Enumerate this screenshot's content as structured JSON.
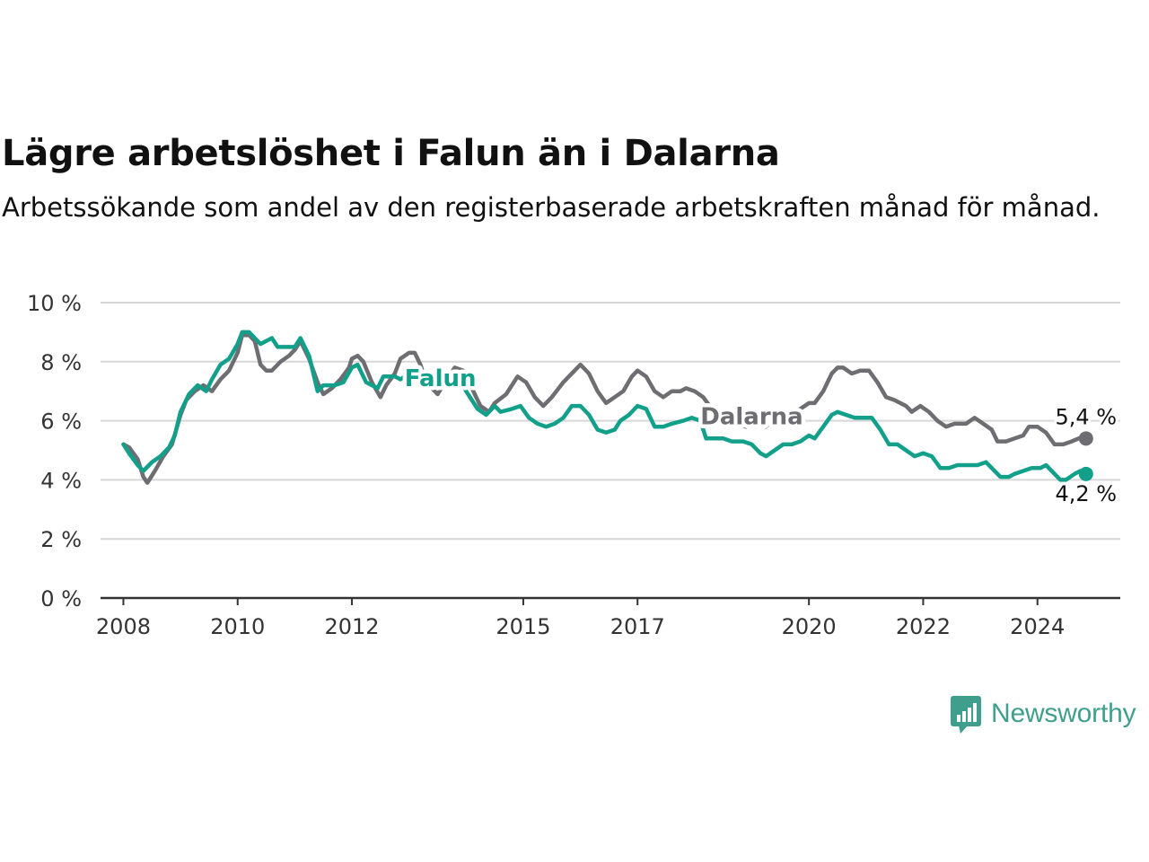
{
  "title": "Lägre arbetslöshet i Falun än i Dalarna",
  "subtitle": "Arbetssökande som andel av den registerbaserade arbetskraften månad för månad.",
  "brand": "Newsworthy",
  "colors": {
    "falun": "#13a08b",
    "dalarna": "#6e6e72",
    "brand": "#3f9f8c"
  },
  "chart_data": {
    "type": "line",
    "ylim": [
      0,
      10
    ],
    "xlim": [
      2007.6,
      2025.45
    ],
    "y_ticks": [
      0,
      2,
      4,
      6,
      8,
      10
    ],
    "y_tick_labels": [
      "0 %",
      "2 %",
      "4 %",
      "6 %",
      "8 %",
      "10 %"
    ],
    "x_ticks": [
      2008,
      2010,
      2012,
      2015,
      2017,
      2020,
      2022,
      2024
    ],
    "x_tick_labels": [
      "2008",
      "2010",
      "2012",
      "2015",
      "2017",
      "2020",
      "2022",
      "2024"
    ],
    "grid": true,
    "series": [
      {
        "name": "Dalarna",
        "end_label": "5,4 %",
        "points": [
          [
            2008.0,
            5.2
          ],
          [
            2008.1,
            5.1
          ],
          [
            2008.25,
            4.7
          ],
          [
            2008.35,
            4.1
          ],
          [
            2008.42,
            3.9
          ],
          [
            2008.55,
            4.3
          ],
          [
            2008.7,
            4.8
          ],
          [
            2008.85,
            5.2
          ],
          [
            2009.0,
            6.2
          ],
          [
            2009.1,
            6.7
          ],
          [
            2009.25,
            7.0
          ],
          [
            2009.4,
            7.2
          ],
          [
            2009.55,
            7.0
          ],
          [
            2009.7,
            7.4
          ],
          [
            2009.85,
            7.7
          ],
          [
            2010.0,
            8.3
          ],
          [
            2010.08,
            8.9
          ],
          [
            2010.2,
            8.9
          ],
          [
            2010.3,
            8.7
          ],
          [
            2010.4,
            7.9
          ],
          [
            2010.5,
            7.7
          ],
          [
            2010.6,
            7.7
          ],
          [
            2010.75,
            8.0
          ],
          [
            2010.9,
            8.2
          ],
          [
            2011.0,
            8.4
          ],
          [
            2011.1,
            8.7
          ],
          [
            2011.25,
            8.1
          ],
          [
            2011.4,
            7.3
          ],
          [
            2011.5,
            6.9
          ],
          [
            2011.65,
            7.1
          ],
          [
            2011.8,
            7.4
          ],
          [
            2011.95,
            7.8
          ],
          [
            2012.0,
            8.1
          ],
          [
            2012.1,
            8.2
          ],
          [
            2012.2,
            8.0
          ],
          [
            2012.35,
            7.3
          ],
          [
            2012.5,
            6.8
          ],
          [
            2012.6,
            7.2
          ],
          [
            2012.75,
            7.6
          ],
          [
            2012.85,
            8.1
          ],
          [
            2013.0,
            8.3
          ],
          [
            2013.1,
            8.3
          ],
          [
            2013.2,
            7.9
          ],
          [
            2013.3,
            7.3
          ],
          [
            2013.5,
            6.9
          ],
          [
            2013.6,
            7.2
          ],
          [
            2013.8,
            7.8
          ],
          [
            2013.95,
            7.7
          ],
          [
            2014.1,
            7.1
          ],
          [
            2014.25,
            6.5
          ],
          [
            2014.4,
            6.3
          ],
          [
            2014.5,
            6.6
          ],
          [
            2014.7,
            6.9
          ],
          [
            2014.9,
            7.5
          ],
          [
            2015.05,
            7.3
          ],
          [
            2015.2,
            6.8
          ],
          [
            2015.35,
            6.5
          ],
          [
            2015.5,
            6.8
          ],
          [
            2015.7,
            7.3
          ],
          [
            2015.85,
            7.6
          ],
          [
            2016.0,
            7.9
          ],
          [
            2016.15,
            7.6
          ],
          [
            2016.3,
            7.0
          ],
          [
            2016.45,
            6.6
          ],
          [
            2016.6,
            6.8
          ],
          [
            2016.75,
            7.0
          ],
          [
            2016.9,
            7.5
          ],
          [
            2017.0,
            7.7
          ],
          [
            2017.15,
            7.5
          ],
          [
            2017.3,
            7.0
          ],
          [
            2017.45,
            6.8
          ],
          [
            2017.6,
            7.0
          ],
          [
            2017.75,
            7.0
          ],
          [
            2017.85,
            7.1
          ],
          [
            2018.0,
            7.0
          ],
          [
            2018.15,
            6.8
          ],
          [
            2018.3,
            6.4
          ],
          [
            2018.5,
            6.1
          ],
          [
            2018.7,
            5.9
          ],
          [
            2018.9,
            5.8
          ],
          [
            2019.0,
            5.9
          ],
          [
            2019.1,
            5.9
          ],
          [
            2019.25,
            5.8
          ],
          [
            2019.4,
            6.1
          ],
          [
            2019.55,
            6.3
          ],
          [
            2019.7,
            6.3
          ],
          [
            2019.85,
            6.4
          ],
          [
            2020.0,
            6.6
          ],
          [
            2020.1,
            6.6
          ],
          [
            2020.25,
            7.0
          ],
          [
            2020.4,
            7.6
          ],
          [
            2020.5,
            7.8
          ],
          [
            2020.6,
            7.8
          ],
          [
            2020.75,
            7.6
          ],
          [
            2020.9,
            7.7
          ],
          [
            2021.05,
            7.7
          ],
          [
            2021.2,
            7.3
          ],
          [
            2021.35,
            6.8
          ],
          [
            2021.5,
            6.7
          ],
          [
            2021.7,
            6.5
          ],
          [
            2021.8,
            6.3
          ],
          [
            2021.95,
            6.5
          ],
          [
            2022.1,
            6.3
          ],
          [
            2022.25,
            6.0
          ],
          [
            2022.4,
            5.8
          ],
          [
            2022.55,
            5.9
          ],
          [
            2022.75,
            5.9
          ],
          [
            2022.9,
            6.1
          ],
          [
            2023.05,
            5.9
          ],
          [
            2023.2,
            5.7
          ],
          [
            2023.3,
            5.3
          ],
          [
            2023.45,
            5.3
          ],
          [
            2023.6,
            5.4
          ],
          [
            2023.75,
            5.5
          ],
          [
            2023.85,
            5.8
          ],
          [
            2024.0,
            5.8
          ],
          [
            2024.15,
            5.6
          ],
          [
            2024.3,
            5.2
          ],
          [
            2024.45,
            5.2
          ],
          [
            2024.6,
            5.3
          ],
          [
            2024.72,
            5.4
          ],
          [
            2024.85,
            5.4
          ]
        ]
      },
      {
        "name": "Falun",
        "end_label": "4,2 %",
        "points": [
          [
            2008.0,
            5.2
          ],
          [
            2008.1,
            4.9
          ],
          [
            2008.25,
            4.5
          ],
          [
            2008.35,
            4.3
          ],
          [
            2008.5,
            4.6
          ],
          [
            2008.65,
            4.8
          ],
          [
            2008.8,
            5.1
          ],
          [
            2008.9,
            5.5
          ],
          [
            2009.0,
            6.3
          ],
          [
            2009.15,
            6.9
          ],
          [
            2009.3,
            7.2
          ],
          [
            2009.45,
            7.0
          ],
          [
            2009.55,
            7.4
          ],
          [
            2009.7,
            7.9
          ],
          [
            2009.85,
            8.1
          ],
          [
            2010.0,
            8.6
          ],
          [
            2010.08,
            9.0
          ],
          [
            2010.2,
            9.0
          ],
          [
            2010.3,
            8.8
          ],
          [
            2010.4,
            8.6
          ],
          [
            2010.5,
            8.7
          ],
          [
            2010.6,
            8.8
          ],
          [
            2010.7,
            8.5
          ],
          [
            2010.85,
            8.5
          ],
          [
            2011.0,
            8.5
          ],
          [
            2011.1,
            8.8
          ],
          [
            2011.25,
            8.2
          ],
          [
            2011.4,
            7.0
          ],
          [
            2011.5,
            7.2
          ],
          [
            2011.7,
            7.2
          ],
          [
            2011.85,
            7.3
          ],
          [
            2012.0,
            7.8
          ],
          [
            2012.1,
            7.9
          ],
          [
            2012.25,
            7.3
          ],
          [
            2012.45,
            7.1
          ],
          [
            2012.55,
            7.5
          ],
          [
            2012.75,
            7.5
          ],
          [
            2012.85,
            7.4
          ],
          [
            2013.0,
            7.6
          ],
          [
            2013.15,
            7.5
          ],
          [
            2013.4,
            7.2
          ],
          [
            2013.65,
            7.2
          ],
          [
            2013.9,
            7.3
          ],
          [
            2014.1,
            6.7
          ],
          [
            2014.2,
            6.4
          ],
          [
            2014.35,
            6.2
          ],
          [
            2014.5,
            6.5
          ],
          [
            2014.6,
            6.3
          ],
          [
            2014.8,
            6.4
          ],
          [
            2014.95,
            6.5
          ],
          [
            2015.1,
            6.1
          ],
          [
            2015.25,
            5.9
          ],
          [
            2015.4,
            5.8
          ],
          [
            2015.55,
            5.9
          ],
          [
            2015.7,
            6.1
          ],
          [
            2015.85,
            6.5
          ],
          [
            2016.0,
            6.5
          ],
          [
            2016.15,
            6.2
          ],
          [
            2016.3,
            5.7
          ],
          [
            2016.45,
            5.6
          ],
          [
            2016.6,
            5.7
          ],
          [
            2016.7,
            6.0
          ],
          [
            2016.85,
            6.2
          ],
          [
            2017.0,
            6.5
          ],
          [
            2017.15,
            6.4
          ],
          [
            2017.3,
            5.8
          ],
          [
            2017.45,
            5.8
          ],
          [
            2017.6,
            5.9
          ],
          [
            2017.8,
            6.0
          ],
          [
            2017.95,
            6.1
          ],
          [
            2018.1,
            6.0
          ],
          [
            2018.2,
            5.4
          ],
          [
            2018.35,
            5.4
          ],
          [
            2018.5,
            5.4
          ],
          [
            2018.65,
            5.3
          ],
          [
            2018.85,
            5.3
          ],
          [
            2019.0,
            5.2
          ],
          [
            2019.15,
            4.9
          ],
          [
            2019.25,
            4.8
          ],
          [
            2019.4,
            5.0
          ],
          [
            2019.55,
            5.2
          ],
          [
            2019.7,
            5.2
          ],
          [
            2019.85,
            5.3
          ],
          [
            2020.0,
            5.5
          ],
          [
            2020.1,
            5.4
          ],
          [
            2020.25,
            5.8
          ],
          [
            2020.4,
            6.2
          ],
          [
            2020.5,
            6.3
          ],
          [
            2020.65,
            6.2
          ],
          [
            2020.8,
            6.1
          ],
          [
            2020.95,
            6.1
          ],
          [
            2021.1,
            6.1
          ],
          [
            2021.25,
            5.7
          ],
          [
            2021.4,
            5.2
          ],
          [
            2021.55,
            5.2
          ],
          [
            2021.7,
            5.0
          ],
          [
            2021.85,
            4.8
          ],
          [
            2022.0,
            4.9
          ],
          [
            2022.15,
            4.8
          ],
          [
            2022.3,
            4.4
          ],
          [
            2022.45,
            4.4
          ],
          [
            2022.6,
            4.5
          ],
          [
            2022.8,
            4.5
          ],
          [
            2022.95,
            4.5
          ],
          [
            2023.1,
            4.6
          ],
          [
            2023.25,
            4.3
          ],
          [
            2023.35,
            4.1
          ],
          [
            2023.5,
            4.1
          ],
          [
            2023.6,
            4.2
          ],
          [
            2023.75,
            4.3
          ],
          [
            2023.9,
            4.4
          ],
          [
            2024.05,
            4.4
          ],
          [
            2024.15,
            4.5
          ],
          [
            2024.25,
            4.3
          ],
          [
            2024.4,
            4.0
          ],
          [
            2024.5,
            4.0
          ],
          [
            2024.65,
            4.2
          ],
          [
            2024.75,
            4.3
          ],
          [
            2024.85,
            4.2
          ]
        ]
      }
    ]
  }
}
